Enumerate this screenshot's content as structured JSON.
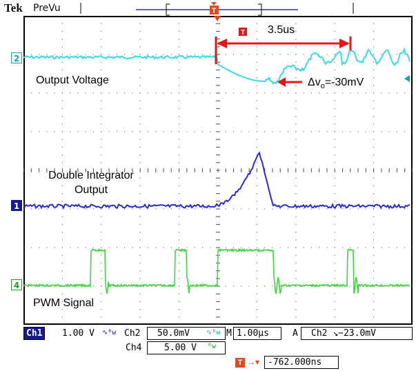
{
  "header": {
    "brand": "Tek",
    "mode": "PreVu"
  },
  "channel_markers": {
    "ch2": "2",
    "ch1": "1",
    "ch4": "4"
  },
  "traces": {
    "output_voltage_label": "Output Voltage",
    "double_integrator_label_line1": "Double Integrator",
    "double_integrator_label_line2": "Output",
    "pwm_label": "PWM Signal",
    "colors": {
      "ch2": "#38d9e8",
      "ch1": "#2a2ad6",
      "ch4": "#3fd43f",
      "annotation": "#e21818"
    }
  },
  "annotations": {
    "interval": "3.5us",
    "trigger_glyph": "T",
    "dip_prefix": "Δv",
    "dip_subscript": "o",
    "dip_value": "=-30mV"
  },
  "readouts": {
    "ch1_tag": "Ch1",
    "ch1_scale": "1.00 V",
    "ch1_coupling": "∿ᴮw",
    "ch2_tag": "Ch2",
    "ch2_scale": "50.0mV",
    "ch2_coupling": "∿ᴮw",
    "timebase_tag": "M",
    "timebase": "1.00µs",
    "trigger_tag": "A",
    "trigger_source": "Ch2",
    "trigger_slope": "↘",
    "trigger_level": "−23.0mV",
    "ch4_tag": "Ch4",
    "ch4_scale": "5.00 V",
    "ch4_coupling": "ᴮw",
    "position_value": "-762.000ns"
  }
}
